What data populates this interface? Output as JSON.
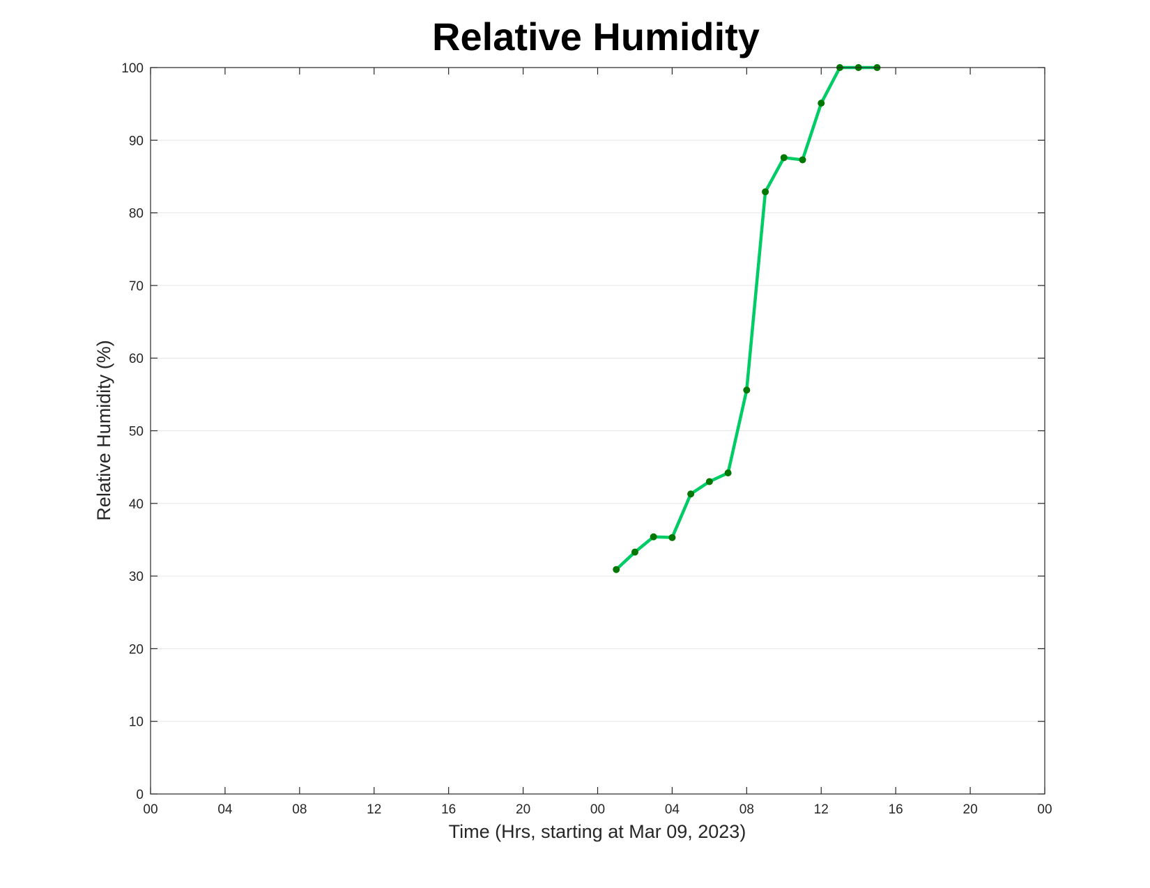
{
  "chart_data": {
    "type": "line",
    "title": "Relative Humidity",
    "xlabel": "Time (Hrs, starting at Mar 09, 2023)",
    "ylabel": "Relative Humidity (%)",
    "xlim_hours": [
      0,
      48
    ],
    "ylim": [
      0,
      100
    ],
    "x_tick_hours": [
      0,
      4,
      8,
      12,
      16,
      20,
      24,
      28,
      32,
      36,
      40,
      44,
      48
    ],
    "x_tick_labels": [
      "00",
      "04",
      "08",
      "12",
      "16",
      "20",
      "00",
      "04",
      "08",
      "12",
      "16",
      "20",
      "00"
    ],
    "y_ticks": [
      0,
      10,
      20,
      30,
      40,
      50,
      60,
      70,
      80,
      90,
      100
    ],
    "grid": "horizontal",
    "series": [
      {
        "line_color": "#00cc66",
        "marker_color": "#007700",
        "x_hours": [
          25,
          26,
          27,
          28,
          29,
          30,
          31,
          32,
          33,
          34,
          35,
          36,
          37,
          38,
          39
        ],
        "values": [
          30.9,
          33.3,
          35.4,
          35.3,
          41.3,
          43.0,
          44.2,
          55.6,
          82.9,
          87.6,
          87.3,
          95.1,
          100,
          100,
          100
        ]
      }
    ]
  }
}
